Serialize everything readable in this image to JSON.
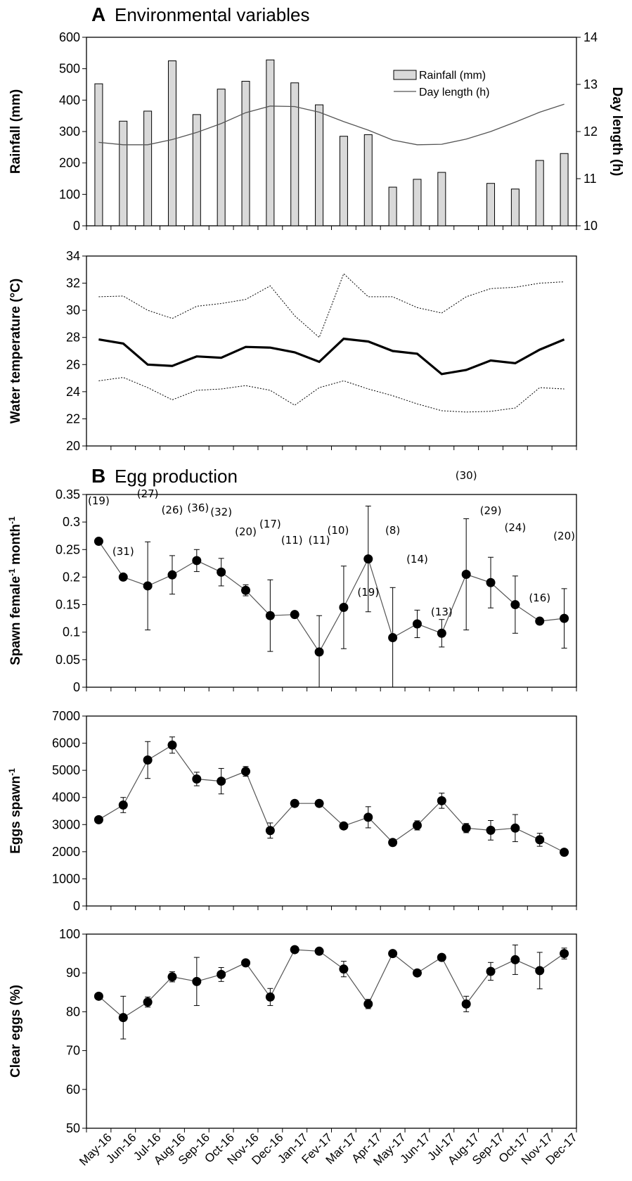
{
  "headings": {
    "a_letter": "A",
    "a_title": "Environmental variables",
    "b_letter": "B",
    "b_title": "Egg production"
  },
  "months": [
    "May-16",
    "Jun-16",
    "Jul-16",
    "Aug-16",
    "Sep-16",
    "Oct-16",
    "Nov-16",
    "Dec-16",
    "Jan-17",
    "Fev-17",
    "Mar-17",
    "Apr-17",
    "May-17",
    "Jun-17",
    "Jul-17",
    "Aug-17",
    "Sep-17",
    "Oct-17",
    "Nov-17",
    "Dec-17"
  ],
  "chart_data": [
    {
      "id": "rainfall_daylength",
      "type": "bar+line",
      "ylabel": "Rainfall (mm)",
      "y2label": "Day length (h)",
      "ylim": [
        0,
        600
      ],
      "y2lim": [
        10,
        14
      ],
      "yticks": [
        "0",
        "100",
        "200",
        "300",
        "400",
        "500",
        "600"
      ],
      "y2ticks": [
        "10",
        "11",
        "12",
        "13",
        "14"
      ],
      "legend": {
        "position": "top-right",
        "entries": [
          "Rainfall (mm)",
          "Day length (h)"
        ]
      },
      "series": [
        {
          "name": "Rainfall (mm)",
          "type": "bar",
          "color": "#d9d9d9",
          "values": [
            452,
            333,
            365,
            525,
            354,
            435,
            460,
            528,
            455,
            385,
            285,
            290,
            123,
            148,
            170,
            null,
            135,
            117,
            208,
            230
          ]
        },
        {
          "name": "Day length (h)",
          "type": "line",
          "axis": "right",
          "color": "#555555",
          "values": [
            11.77,
            11.72,
            11.72,
            11.83,
            11.98,
            12.17,
            12.4,
            12.54,
            12.53,
            12.41,
            12.21,
            12.03,
            11.82,
            11.72,
            11.73,
            11.84,
            12.0,
            12.2,
            12.41,
            12.58
          ]
        }
      ]
    },
    {
      "id": "water_temperature",
      "type": "line",
      "ylabel": "Water temperature (°C)",
      "ylim": [
        20,
        34
      ],
      "yticks": [
        "20",
        "22",
        "24",
        "26",
        "28",
        "30",
        "32",
        "34"
      ],
      "series": [
        {
          "role": "max",
          "style": "dotted",
          "values": [
            31.0,
            31.05,
            30.0,
            29.4,
            30.3,
            30.5,
            30.8,
            31.8,
            29.6,
            28.0,
            32.7,
            31.0,
            31.0,
            30.2,
            29.8,
            31.0,
            31.6,
            31.7,
            32.0,
            32.1
          ]
        },
        {
          "role": "mean",
          "style": "bold",
          "values": [
            27.85,
            27.55,
            26.0,
            25.9,
            26.6,
            26.5,
            27.3,
            27.25,
            26.9,
            26.2,
            27.9,
            27.7,
            27.0,
            26.8,
            25.3,
            25.6,
            26.3,
            26.1,
            27.1,
            27.85
          ]
        },
        {
          "role": "min",
          "style": "dotted",
          "values": [
            24.8,
            25.05,
            24.3,
            23.4,
            24.1,
            24.2,
            24.45,
            24.1,
            23.0,
            24.3,
            24.8,
            24.2,
            23.7,
            23.1,
            22.6,
            22.5,
            22.55,
            22.8,
            24.3,
            24.2
          ]
        }
      ]
    },
    {
      "id": "spawn_frequency",
      "type": "scatter-line",
      "ylabel_main": "Spawn female",
      "ylabel_sup1": "-1",
      "ylabel_mid": " month",
      "ylabel_sup2": "-1",
      "ylim": [
        0,
        0.35
      ],
      "yticks": [
        "0",
        "0.05",
        "0.1",
        "0.15",
        "0.2",
        "0.25",
        "0.3",
        "0.35"
      ],
      "values": [
        0.265,
        0.2,
        0.184,
        0.204,
        0.23,
        0.209,
        0.176,
        0.13,
        0.132,
        0.064,
        0.145,
        0.233,
        0.09,
        0.115,
        0.098,
        0.205,
        0.19,
        0.15,
        0.12,
        0.125
      ],
      "errors": [
        0,
        0,
        0.08,
        0.035,
        0.02,
        0.025,
        0.01,
        0.065,
        0,
        0.066,
        0.075,
        0.096,
        0.091,
        0.025,
        0.025,
        0.101,
        0.046,
        0.052,
        0,
        0.054
      ],
      "n_labels": [
        "(19)",
        "(31)",
        "(27)",
        "(26)",
        "(36)",
        "(32)",
        "(20)",
        "(17)",
        "(11)",
        "(11)",
        "(10)",
        "(19)",
        "(8)",
        "(14)",
        "(13)",
        "(30)",
        "(29)",
        "(24)",
        "(16)",
        "(20)"
      ]
    },
    {
      "id": "eggs_per_spawn",
      "type": "scatter-line",
      "ylabel_main": "Eggs spawn",
      "ylabel_sup1": "-1",
      "ylim": [
        0,
        7000
      ],
      "yticks": [
        "0",
        "1000",
        "2000",
        "3000",
        "4000",
        "5000",
        "6000",
        "7000"
      ],
      "values": [
        3180,
        3720,
        5380,
        5930,
        4680,
        4600,
        4960,
        2780,
        3780,
        3780,
        2950,
        3270,
        2340,
        2970,
        3880,
        2870,
        2790,
        2870,
        2440,
        1980
      ],
      "errors": [
        0,
        280,
        680,
        300,
        250,
        470,
        180,
        280,
        0,
        0,
        0,
        390,
        0,
        170,
        280,
        170,
        360,
        500,
        240,
        0
      ]
    },
    {
      "id": "clear_eggs",
      "type": "scatter-line",
      "ylabel": "Clear eggs (%)",
      "ylim": [
        50,
        100
      ],
      "yticks": [
        "50",
        "60",
        "70",
        "80",
        "90",
        "100"
      ],
      "values": [
        84.0,
        78.5,
        82.5,
        89.0,
        87.8,
        89.6,
        92.6,
        83.8,
        96.0,
        95.6,
        91.0,
        82.0,
        95.0,
        90.0,
        94.0,
        82.0,
        90.4,
        93.4,
        90.6,
        95.0
      ],
      "errors": [
        0,
        5.5,
        1.3,
        1.3,
        6.2,
        1.8,
        0,
        2.2,
        0,
        0,
        2.0,
        1.2,
        0,
        0,
        0,
        2.0,
        2.3,
        3.8,
        4.7,
        1.4
      ]
    }
  ]
}
